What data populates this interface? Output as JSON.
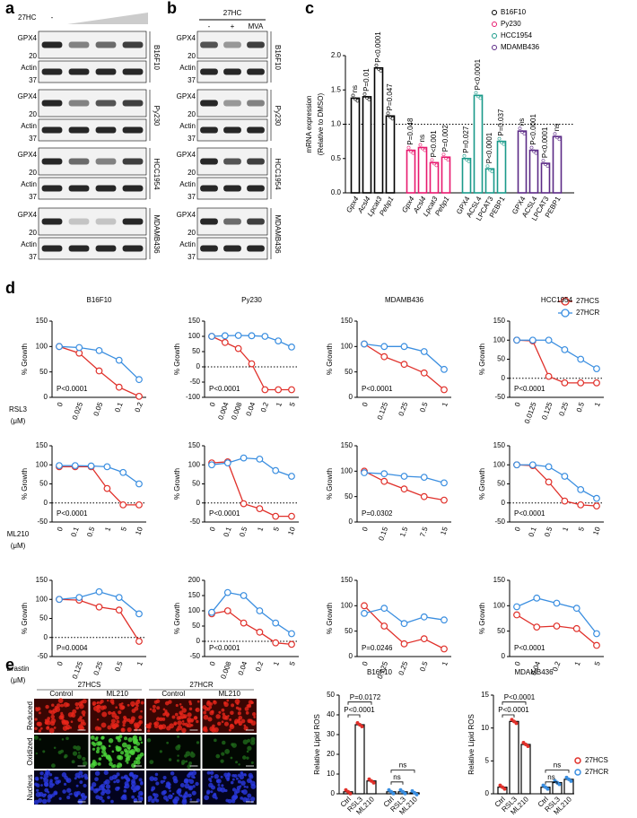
{
  "panel_labels": [
    "a",
    "b",
    "c",
    "d",
    "e"
  ],
  "blots": [
    {
      "treatment": "27HC",
      "lanes": [
        "-"
      ],
      "groups": [
        {
          "cell_line": "B16F10",
          "rows": [
            {
              "protein": "GPX4",
              "marker": "20"
            },
            {
              "protein": "Actin",
              "marker": "37"
            }
          ]
        },
        {
          "cell_line": "Py230",
          "rows": [
            {
              "protein": "GPX4",
              "marker": "20"
            },
            {
              "protein": "Actin",
              "marker": "37"
            }
          ]
        },
        {
          "cell_line": "HCC1954",
          "rows": [
            {
              "protein": "GPX4",
              "marker": "20"
            },
            {
              "protein": "Actin",
              "marker": "37"
            }
          ]
        },
        {
          "cell_line": "MDAMB436",
          "rows": [
            {
              "protein": "GPX4",
              "marker": "20"
            },
            {
              "protein": "Actin",
              "marker": "37"
            }
          ]
        }
      ]
    },
    {
      "treatment": "27HC",
      "lanes": [
        "-",
        "+",
        "MVA"
      ],
      "groups": [
        {
          "cell_line": "B16F10",
          "rows": [
            {
              "protein": "GPX4",
              "marker": "20"
            },
            {
              "protein": "Actin",
              "marker": "37"
            }
          ]
        },
        {
          "cell_line": "Py230",
          "rows": [
            {
              "protein": "GPX4",
              "marker": "20"
            },
            {
              "protein": "Actin",
              "marker": "37"
            }
          ]
        },
        {
          "cell_line": "HCC1954",
          "rows": [
            {
              "protein": "GPX4",
              "marker": "20"
            },
            {
              "protein": "Actin",
              "marker": "37"
            }
          ]
        },
        {
          "cell_line": "MDAMB436",
          "rows": [
            {
              "protein": "GPX4",
              "marker": "20"
            },
            {
              "protein": "Actin",
              "marker": "37"
            }
          ]
        }
      ]
    }
  ],
  "micrographs": {
    "column_groups": [
      "27HCS",
      "27HCR"
    ],
    "columns": [
      "Control",
      "ML210",
      "Control",
      "ML210"
    ],
    "rows": [
      "Reduced",
      "Oxidized",
      "Nucleus"
    ]
  },
  "chart_data": [
    {
      "type": "bar",
      "ylabel": [
        "mRNA expression",
        "(Relative to DMSO)"
      ],
      "ylim": [
        0,
        2
      ],
      "yticks": [
        {
          "value": 0,
          "label": "0.0"
        },
        0.5,
        {
          "value": 1,
          "label": "1.0"
        },
        1.5,
        {
          "value": 2,
          "label": "2.0"
        }
      ],
      "reference_line": 1,
      "groups": [
        {
          "name": "B16F10",
          "color": "#000000",
          "italic": true,
          "categories": [
            "Gpx4",
            "Acsl4",
            "Lpcat3",
            "Pebp1"
          ],
          "values": [
            1.38,
            1.4,
            1.82,
            1.12
          ],
          "annotations": [
            "ns",
            "P=0.01",
            "P<0.0001",
            "P=0.047"
          ]
        },
        {
          "name": "Py230",
          "color": "#e8196e",
          "italic": true,
          "categories": [
            "Gpx4",
            "Acsl4",
            "Lpcat3",
            "Pebp1"
          ],
          "values": [
            0.62,
            0.66,
            0.44,
            0.52
          ],
          "annotations": [
            "P=0.048",
            "ns",
            "P<0.001",
            "P=0.002"
          ]
        },
        {
          "name": "HCC1954",
          "color": "#1a9a8a",
          "italic": false,
          "categories": [
            "GPX4",
            "ACSL4",
            "LPCAT3",
            "PEBP1"
          ],
          "values": [
            0.5,
            1.42,
            0.35,
            0.75
          ],
          "annotations": [
            "P=0.027",
            "P<0.0001",
            "P<0.0001",
            "P=0.037"
          ]
        },
        {
          "name": "MDAMB436",
          "color": "#5b2a86",
          "italic": false,
          "categories": [
            "GPX4",
            "ACSL4",
            "LPCAT3",
            "PEBP1"
          ],
          "values": [
            0.9,
            0.62,
            0.43,
            0.82
          ],
          "annotations": [
            "ns",
            "P<0.0001",
            "P<0.0001",
            "ns"
          ]
        }
      ]
    },
    {
      "type": "line",
      "title": "B16F10",
      "ylabel": "% Growth",
      "xlabel": [
        "RSL3",
        "(μM)"
      ],
      "categories": [
        "0",
        "0.025",
        "0.05",
        "0.1",
        "0.2"
      ],
      "ylim": [
        0,
        150
      ],
      "yticks": [
        0,
        50,
        100,
        150
      ],
      "annotation": "P<0.0001",
      "series": [
        {
          "name": "27HCS",
          "color": "#e0302a",
          "values": [
            100,
            87,
            52,
            20,
            2
          ]
        },
        {
          "name": "27HCR",
          "color": "#3a8ee0",
          "values": [
            100,
            98,
            92,
            73,
            35
          ]
        }
      ]
    },
    {
      "type": "line",
      "title": "Py230",
      "ylabel": "% Growth",
      "categories": [
        "0",
        "0.004",
        "0.008",
        "0.04",
        "0.2",
        "1",
        "5"
      ],
      "ylim": [
        -100,
        150
      ],
      "yticks": [
        -100,
        -50,
        0,
        50,
        100,
        150
      ],
      "reference_line": 0,
      "annotation": "P<0.0001",
      "series": [
        {
          "color": "#e0302a",
          "values": [
            100,
            80,
            60,
            10,
            -75,
            -75,
            -75
          ]
        },
        {
          "color": "#3a8ee0",
          "values": [
            100,
            102,
            103,
            102,
            100,
            85,
            65
          ]
        }
      ]
    },
    {
      "type": "line",
      "title": "MDAMB436",
      "ylabel": "% Growth",
      "categories": [
        "0",
        "0.125",
        "0.25",
        "0.5",
        "1"
      ],
      "ylim": [
        0,
        150
      ],
      "yticks": [
        0,
        50,
        100,
        150
      ],
      "annotation": "P<0.0001",
      "series": [
        {
          "color": "#e0302a",
          "values": [
            105,
            80,
            65,
            48,
            15
          ]
        },
        {
          "color": "#3a8ee0",
          "values": [
            105,
            100,
            100,
            90,
            55
          ]
        }
      ]
    },
    {
      "type": "line",
      "title": "HCC1954",
      "ylabel": "% Growth",
      "categories": [
        "0",
        "0.0125",
        "0.125",
        "0.25",
        "0.5",
        "1"
      ],
      "ylim": [
        -50,
        150
      ],
      "yticks": [
        -50,
        0,
        50,
        100,
        150
      ],
      "reference_line": 0,
      "annotation": "P<0.0001",
      "series": [
        {
          "color": "#e0302a",
          "values": [
            100,
            98,
            5,
            -12,
            -12,
            -12
          ]
        },
        {
          "color": "#3a8ee0",
          "values": [
            100,
            100,
            100,
            75,
            50,
            25
          ]
        }
      ]
    },
    {
      "type": "line",
      "ylabel": "% Growth",
      "xlabel": [
        "ML210",
        "(μM)"
      ],
      "categories": [
        "0",
        "0.1",
        "0.5",
        "1",
        "5",
        "10"
      ],
      "ylim": [
        -50,
        150
      ],
      "yticks": [
        -50,
        0,
        50,
        100,
        150
      ],
      "reference_line": 0,
      "annotation": "P<0.0001",
      "series": [
        {
          "color": "#e0302a",
          "values": [
            95,
            95,
            95,
            38,
            -5,
            -5
          ]
        },
        {
          "color": "#3a8ee0",
          "values": [
            98,
            98,
            97,
            95,
            80,
            50
          ]
        }
      ]
    },
    {
      "type": "line",
      "ylabel": "% Growth",
      "categories": [
        "0",
        "0.1",
        "0.5",
        "1",
        "5",
        "10"
      ],
      "ylim": [
        -50,
        150
      ],
      "yticks": [
        -50,
        0,
        50,
        100,
        150
      ],
      "reference_line": 0,
      "annotation": "P<0.0001",
      "series": [
        {
          "color": "#e0302a",
          "values": [
            105,
            108,
            -2,
            -15,
            -35,
            -35
          ]
        },
        {
          "color": "#3a8ee0",
          "values": [
            100,
            105,
            118,
            115,
            85,
            70
          ]
        }
      ]
    },
    {
      "type": "line",
      "ylabel": "% Growth",
      "categories": [
        "0",
        "0.15",
        "1.5",
        "7.5",
        "15"
      ],
      "ylim": [
        0,
        150
      ],
      "yticks": [
        0,
        50,
        100,
        150
      ],
      "annotation": "P=0.0302",
      "series": [
        {
          "color": "#e0302a",
          "values": [
            100,
            80,
            65,
            50,
            43
          ]
        },
        {
          "color": "#3a8ee0",
          "values": [
            97,
            95,
            90,
            88,
            77
          ]
        }
      ]
    },
    {
      "type": "line",
      "ylabel": "% Growth",
      "categories": [
        "0",
        "0.1",
        "0.5",
        "1",
        "5",
        "10"
      ],
      "ylim": [
        -50,
        150
      ],
      "yticks": [
        -50,
        0,
        50,
        100,
        150
      ],
      "reference_line": 0,
      "annotation": "P<0.0001",
      "series": [
        {
          "color": "#e0302a",
          "values": [
            100,
            98,
            55,
            5,
            -5,
            -8
          ]
        },
        {
          "color": "#3a8ee0",
          "values": [
            100,
            100,
            95,
            70,
            35,
            12
          ]
        }
      ]
    },
    {
      "type": "line",
      "ylabel": "% Growth",
      "xlabel": [
        "Erastin",
        "(μM)"
      ],
      "categories": [
        "0",
        "0.125",
        "0.25",
        "0.5",
        "1"
      ],
      "ylim": [
        -50,
        150
      ],
      "yticks": [
        -50,
        0,
        50,
        100,
        150
      ],
      "reference_line": 0,
      "annotation": "P=0.0004",
      "series": [
        {
          "color": "#e0302a",
          "values": [
            100,
            98,
            80,
            72,
            -10
          ]
        },
        {
          "color": "#3a8ee0",
          "values": [
            100,
            105,
            120,
            105,
            62
          ]
        }
      ]
    },
    {
      "type": "line",
      "ylabel": "% Growth",
      "categories": [
        "0",
        "0.008",
        "0.04",
        "0.2",
        "1",
        "5"
      ],
      "ylim": [
        -50,
        200
      ],
      "yticks": [
        -50,
        0,
        50,
        100,
        150,
        200
      ],
      "reference_line": 0,
      "annotation": "P<0.0001",
      "series": [
        {
          "color": "#e0302a",
          "values": [
            90,
            100,
            60,
            30,
            -5,
            -10
          ]
        },
        {
          "color": "#3a8ee0",
          "values": [
            95,
            160,
            150,
            100,
            60,
            25
          ]
        }
      ]
    },
    {
      "type": "line",
      "ylabel": "% Growth",
      "categories": [
        "0",
        "0.125",
        "0.25",
        "0.5",
        "1"
      ],
      "ylim": [
        0,
        150
      ],
      "yticks": [
        0,
        50,
        100,
        150
      ],
      "annotation": "P=0.0246",
      "series": [
        {
          "color": "#e0302a",
          "values": [
            100,
            60,
            25,
            35,
            15
          ]
        },
        {
          "color": "#3a8ee0",
          "values": [
            85,
            95,
            65,
            78,
            72
          ]
        }
      ]
    },
    {
      "type": "line",
      "ylabel": "% Growth",
      "categories": [
        "0",
        "0.04",
        "0.2",
        "1",
        "5"
      ],
      "ylim": [
        0,
        150
      ],
      "yticks": [
        0,
        50,
        100,
        150
      ],
      "annotation": "P<0.0001",
      "series": [
        {
          "color": "#e0302a",
          "values": [
            82,
            58,
            60,
            55,
            22
          ]
        },
        {
          "color": "#3a8ee0",
          "values": [
            98,
            115,
            105,
            95,
            45
          ]
        }
      ]
    },
    {
      "type": "bar",
      "title": "B16F10",
      "ylabel": "Relative Lipid ROS",
      "categories": [
        "Ctrl",
        "RSL3",
        "ML210"
      ],
      "ylim": [
        0,
        50
      ],
      "yticks": [
        0,
        10,
        20,
        30,
        40,
        50
      ],
      "annotations": [
        "P<0.0001",
        "P=0.0172",
        "ns",
        "ns"
      ],
      "series": [
        {
          "color": "#e0302a",
          "values": [
            1,
            35,
            6.5
          ]
        },
        {
          "color": "#3a8ee0",
          "values": [
            1,
            1,
            0.5
          ]
        }
      ]
    },
    {
      "type": "bar",
      "title": "MDAMB436",
      "ylabel": "Relative Lipid ROS",
      "categories": [
        "Ctrl",
        "RSL3",
        "ML210"
      ],
      "ylim": [
        0,
        15
      ],
      "yticks": [
        0,
        5,
        10,
        15
      ],
      "annotations": [
        "P<0.0001",
        "P<0.0001",
        "ns",
        "ns"
      ],
      "series": [
        {
          "name": "27HCS",
          "color": "#e0302a",
          "values": [
            1,
            11,
            7.5
          ]
        },
        {
          "name": "27HCR",
          "color": "#3a8ee0",
          "values": [
            1,
            1.7,
            2.2
          ]
        }
      ]
    }
  ]
}
